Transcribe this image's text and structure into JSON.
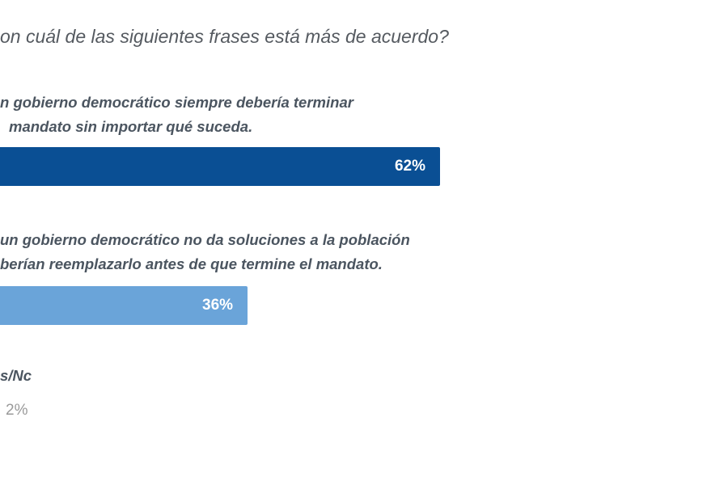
{
  "chart_data": {
    "type": "bar",
    "orientation": "horizontal",
    "title": "on cuál de las siguientes frases está más de acuerdo?",
    "categories": [
      [
        "n gobierno democrático siempre debería terminar",
        "mandato sin importar qué suceda."
      ],
      [
        "un gobierno democrático no da soluciones a la población",
        "berían reemplazarlo antes de que termine el mandato."
      ],
      [
        "s/Nc"
      ]
    ],
    "values": [
      62,
      36,
      2
    ],
    "value_labels": [
      "62%",
      "36%",
      "2%"
    ],
    "colors": [
      "#0a4f94",
      "#6aa4d9",
      "#cccccc"
    ],
    "xlim": [
      0,
      100
    ],
    "grid": false
  }
}
